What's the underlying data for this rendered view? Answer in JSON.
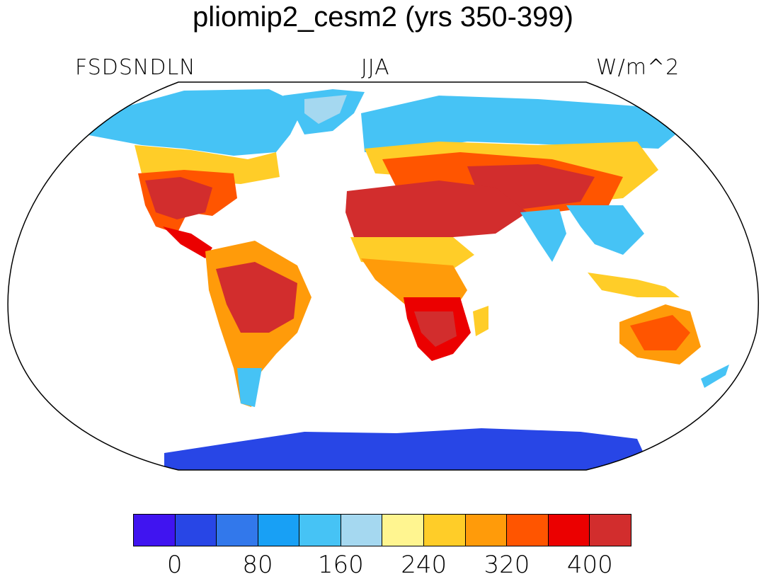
{
  "title": "pliomip2_cesm2 (yrs 350-399)",
  "variable": "FSDSNDLN",
  "season": "JJA",
  "units": "W/m^2",
  "colorbar": {
    "colors": [
      "#4014f0",
      "#2846e6",
      "#3278eb",
      "#18a0f5",
      "#46c3f5",
      "#a5d8f0",
      "#fff590",
      "#ffcd28",
      "#ff9b0a",
      "#ff5500",
      "#eb0000",
      "#d22d2d"
    ],
    "tick_labels": [
      "0",
      "80",
      "160",
      "240",
      "320",
      "400"
    ]
  }
}
